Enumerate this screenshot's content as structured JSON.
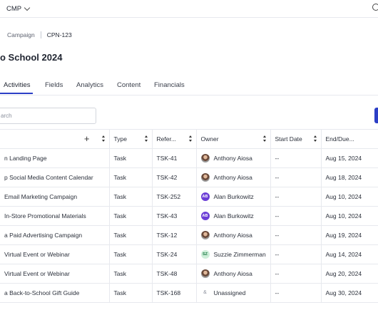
{
  "topbar": {
    "app_name": "CMP"
  },
  "breadcrumb": {
    "parent": "Campaign",
    "current": "CPN-123"
  },
  "page_title": "o School 2024",
  "tabs": [
    "Activities",
    "Fields",
    "Analytics",
    "Content",
    "Financials"
  ],
  "search": {
    "placeholder": "arch"
  },
  "table": {
    "columns": [
      "",
      "Type",
      "Refer...",
      "Owner",
      "Start Date",
      "End/Due..."
    ],
    "rows": [
      {
        "name": "n Landing Page",
        "type": "Task",
        "ref": "TSK-41",
        "avatar": "photo",
        "initials": "",
        "owner": "Anthony Aiosa",
        "start": "--",
        "end": "Aug 15, 2024"
      },
      {
        "name": "p Social Media Content Calendar",
        "type": "Task",
        "ref": "TSK-42",
        "avatar": "photo",
        "initials": "",
        "owner": "Anthony Aiosa",
        "start": "--",
        "end": "Aug 18, 2024"
      },
      {
        "name": " Email Marketing Campaign",
        "type": "Task",
        "ref": "TSK-252",
        "avatar": "ab",
        "initials": "AB",
        "owner": "Alan Burkowitz",
        "start": "--",
        "end": "Aug 10, 2024"
      },
      {
        "name": " In-Store Promotional Materials",
        "type": "Task",
        "ref": "TSK-43",
        "avatar": "ab",
        "initials": "AB",
        "owner": "Alan Burkowitz",
        "start": "--",
        "end": "Aug 10, 2024"
      },
      {
        "name": " a Paid Advertising Campaign",
        "type": "Task",
        "ref": "TSK-12",
        "avatar": "photo",
        "initials": "",
        "owner": "Anthony Aiosa",
        "start": "--",
        "end": "Aug 19, 2024"
      },
      {
        "name": " Virtual Event or Webinar",
        "type": "Task",
        "ref": "TSK-24",
        "avatar": "sz",
        "initials": "SZ",
        "owner": "Suzzie Zimmerman",
        "start": "--",
        "end": "Aug 14, 2024"
      },
      {
        "name": " Virtual Event or Webinar",
        "type": "Task",
        "ref": "TSK-48",
        "avatar": "photo",
        "initials": "",
        "owner": "Anthony Aiosa",
        "start": "--",
        "end": "Aug 20, 2024"
      },
      {
        "name": " a Back-to-School Gift Guide",
        "type": "Task",
        "ref": "TSK-168",
        "avatar": "none",
        "initials": "&",
        "owner": "Unassigned",
        "start": "--",
        "end": "Aug 30, 2024"
      }
    ]
  }
}
